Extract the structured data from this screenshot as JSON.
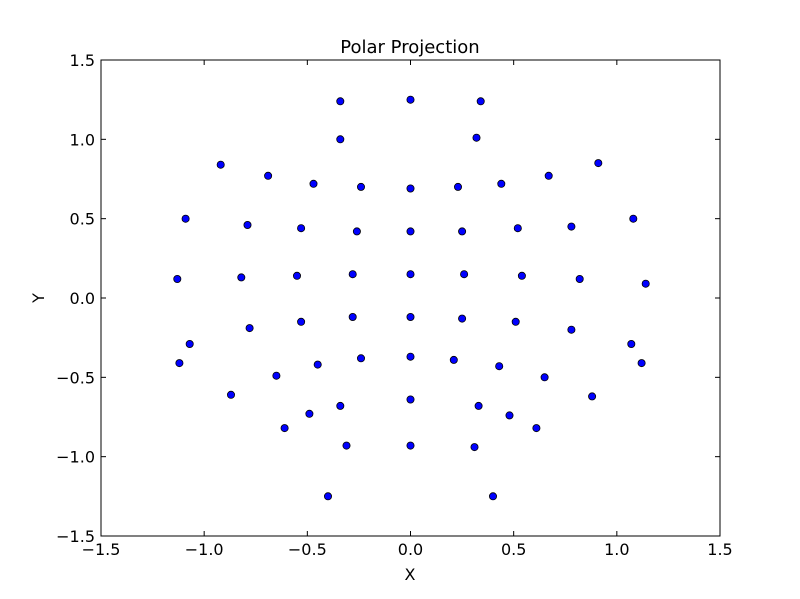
{
  "chart_data": {
    "type": "scatter",
    "title": "Polar Projection",
    "xlabel": "X",
    "ylabel": "Y",
    "xlim": [
      -1.5,
      1.5
    ],
    "ylim": [
      -1.5,
      1.5
    ],
    "xticks": [
      -1.5,
      -1.0,
      -0.5,
      0.0,
      0.5,
      1.0,
      1.5
    ],
    "yticks": [
      -1.5,
      -1.0,
      -0.5,
      0.0,
      0.5,
      1.0,
      1.5
    ],
    "xtick_labels": [
      "−1.5",
      "−1.0",
      "−0.5",
      "0.0",
      "0.5",
      "1.0",
      "1.5"
    ],
    "ytick_labels": [
      "−1.5",
      "−1.0",
      "−0.5",
      "0.0",
      "0.5",
      "1.0",
      "1.5"
    ],
    "grid": false,
    "marker_color": "#0000ff",
    "edge_color": "#000000",
    "points": [
      [
        -0.34,
        1.24
      ],
      [
        0.0,
        1.25
      ],
      [
        0.34,
        1.24
      ],
      [
        -0.34,
        1.0
      ],
      [
        0.32,
        1.01
      ],
      [
        -0.92,
        0.84
      ],
      [
        -0.69,
        0.77
      ],
      [
        -0.47,
        0.72
      ],
      [
        -0.24,
        0.7
      ],
      [
        0.0,
        0.69
      ],
      [
        0.23,
        0.7
      ],
      [
        0.44,
        0.72
      ],
      [
        0.67,
        0.77
      ],
      [
        0.91,
        0.85
      ],
      [
        -1.09,
        0.5
      ],
      [
        -0.79,
        0.46
      ],
      [
        -0.53,
        0.44
      ],
      [
        -0.26,
        0.42
      ],
      [
        0.0,
        0.42
      ],
      [
        0.25,
        0.42
      ],
      [
        0.52,
        0.44
      ],
      [
        0.78,
        0.45
      ],
      [
        1.08,
        0.5
      ],
      [
        -1.13,
        0.12
      ],
      [
        -0.82,
        0.13
      ],
      [
        -0.55,
        0.14
      ],
      [
        -0.28,
        0.15
      ],
      [
        0.0,
        0.15
      ],
      [
        0.26,
        0.15
      ],
      [
        0.54,
        0.14
      ],
      [
        0.82,
        0.12
      ],
      [
        1.14,
        0.09
      ],
      [
        -1.07,
        -0.29
      ],
      [
        -0.78,
        -0.19
      ],
      [
        -0.53,
        -0.15
      ],
      [
        -0.28,
        -0.12
      ],
      [
        0.0,
        -0.12
      ],
      [
        0.25,
        -0.13
      ],
      [
        0.51,
        -0.15
      ],
      [
        0.78,
        -0.2
      ],
      [
        1.07,
        -0.29
      ],
      [
        -1.12,
        -0.41
      ],
      [
        -0.87,
        -0.61
      ],
      [
        -0.65,
        -0.49
      ],
      [
        -0.45,
        -0.42
      ],
      [
        -0.24,
        -0.38
      ],
      [
        0.0,
        -0.37
      ],
      [
        0.21,
        -0.39
      ],
      [
        0.43,
        -0.43
      ],
      [
        0.65,
        -0.5
      ],
      [
        0.88,
        -0.62
      ],
      [
        1.12,
        -0.41
      ],
      [
        -0.61,
        -0.82
      ],
      [
        -0.49,
        -0.73
      ],
      [
        -0.34,
        -0.68
      ],
      [
        0.0,
        -0.64
      ],
      [
        0.33,
        -0.68
      ],
      [
        0.48,
        -0.74
      ],
      [
        0.61,
        -0.82
      ],
      [
        -0.31,
        -0.93
      ],
      [
        0.0,
        -0.93
      ],
      [
        0.31,
        -0.94
      ],
      [
        -0.4,
        -1.25
      ],
      [
        0.4,
        -1.25
      ]
    ]
  }
}
